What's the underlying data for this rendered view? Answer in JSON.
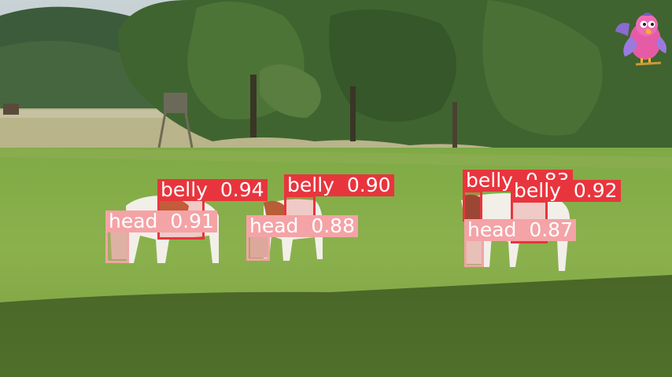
{
  "colors": {
    "belly": "#e8353d",
    "head": "#f4a3a6"
  },
  "detections": [
    {
      "cls": "belly",
      "score": "0.94"
    },
    {
      "cls": "belly",
      "score": "0.90"
    },
    {
      "cls": "belly",
      "score": "0.83"
    },
    {
      "cls": "belly",
      "score": "0.92"
    },
    {
      "cls": "head",
      "score": "0.91"
    },
    {
      "cls": "head",
      "score": "0.88"
    },
    {
      "cls": "head",
      "score": "0.87"
    }
  ],
  "mascot": {
    "icon": "parrot-icon"
  }
}
